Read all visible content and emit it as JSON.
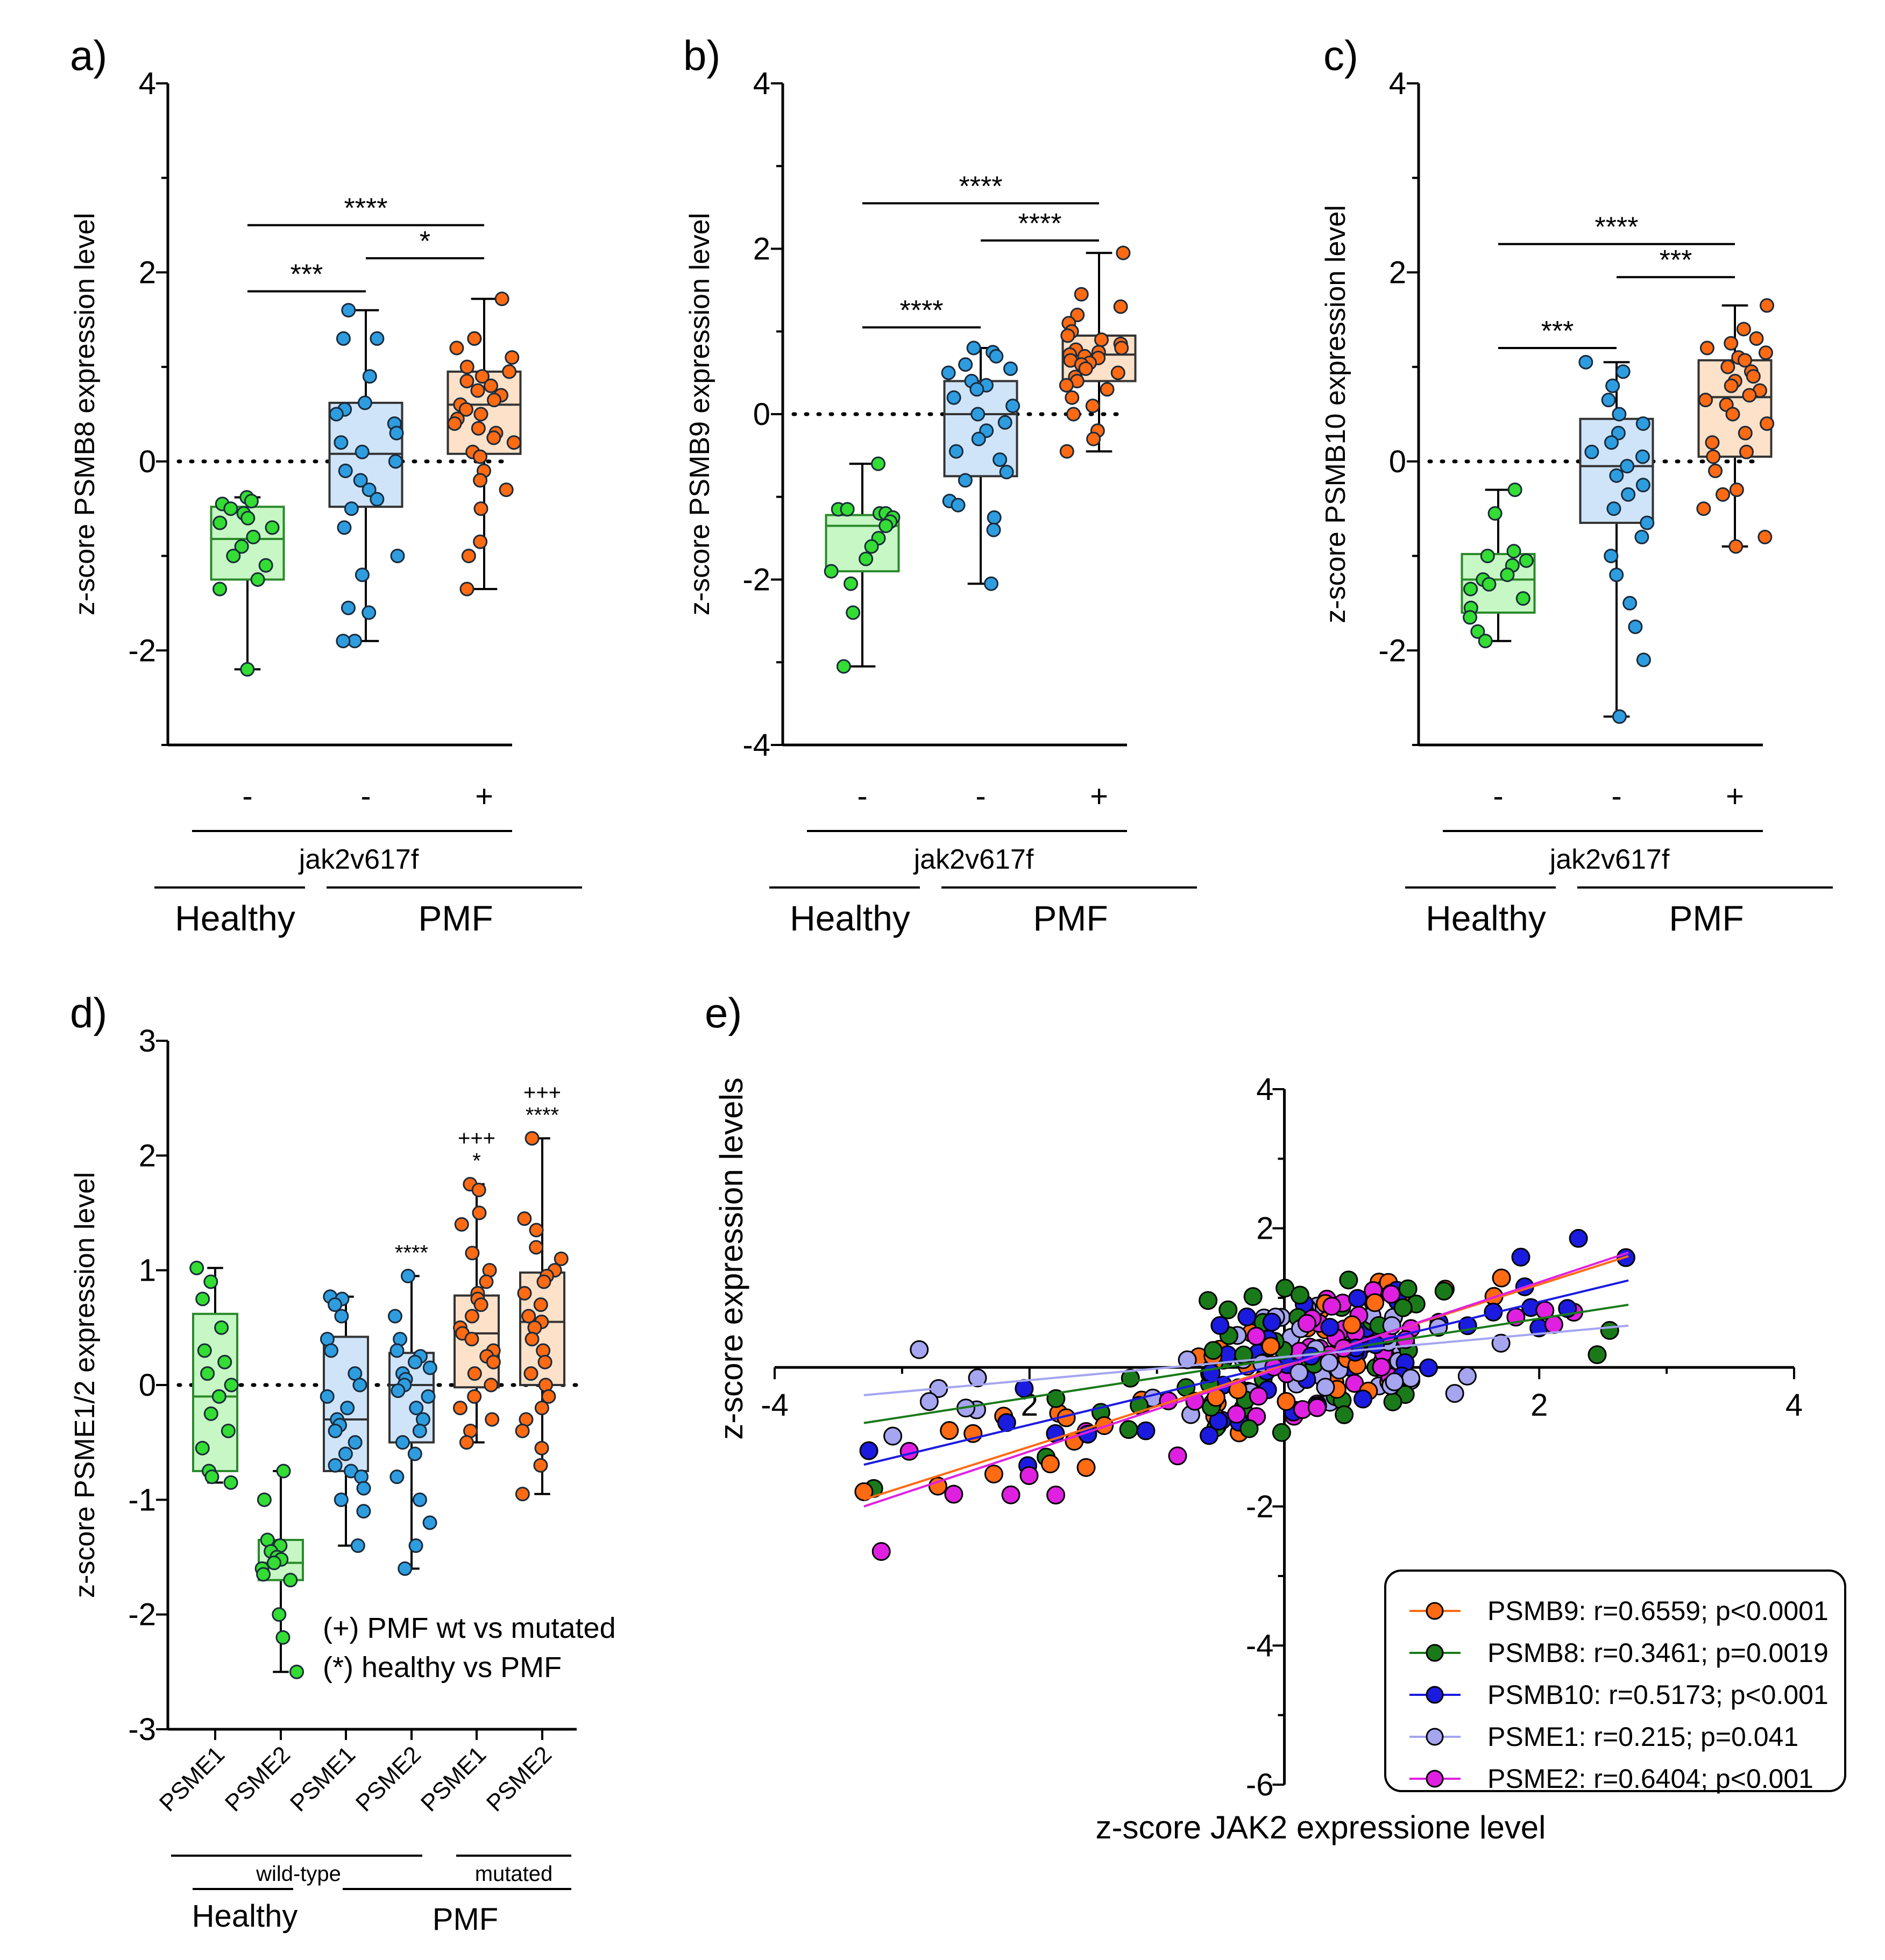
{
  "colors": {
    "healthy": "#33dd33",
    "pmf_wt": "#2e9de0",
    "pmf_mut": "#ff6a13",
    "healthy_box": "#c7f7c4",
    "wt_box": "#cfe4f8",
    "mut_box": "#fde1c8"
  },
  "chart_data": [
    {
      "panel": "a)",
      "type": "box",
      "ylabel": "z-score PSMB8 expression level",
      "yticks": [
        "4",
        "2",
        "0",
        "-2"
      ],
      "ylim": [
        -3,
        4
      ],
      "groups": [
        {
          "sign": "-",
          "color": "healthy",
          "stats": {
            "min": -2.2,
            "q1": -1.25,
            "med": -0.82,
            "q3": -0.48,
            "max": -0.38
          },
          "points": [
            -0.38,
            -0.42,
            -0.45,
            -0.5,
            -0.55,
            -0.6,
            -0.65,
            -0.7,
            -0.8,
            -0.9,
            -1.0,
            -1.1,
            -1.25,
            -1.35,
            -2.2
          ]
        },
        {
          "sign": "-",
          "color": "pmf_wt",
          "stats": {
            "min": -1.9,
            "q1": -0.48,
            "med": 0.08,
            "q3": 0.62,
            "max": 1.6
          },
          "points": [
            1.6,
            1.3,
            1.3,
            0.9,
            0.62,
            0.55,
            0.5,
            0.4,
            0.3,
            0.2,
            0.1,
            0.0,
            -0.1,
            -0.2,
            -0.3,
            -0.4,
            -0.5,
            -0.7,
            -1.0,
            -1.2,
            -1.55,
            -1.6,
            -1.9,
            -1.9
          ]
        },
        {
          "sign": "+",
          "color": "pmf_mut",
          "stats": {
            "min": -1.35,
            "q1": 0.08,
            "med": 0.6,
            "q3": 0.95,
            "max": 1.72
          },
          "points": [
            1.72,
            1.3,
            1.3,
            1.2,
            1.1,
            1.0,
            0.95,
            0.9,
            0.85,
            0.8,
            0.75,
            0.7,
            0.65,
            0.6,
            0.55,
            0.5,
            0.45,
            0.4,
            0.35,
            0.3,
            0.25,
            0.2,
            0.1,
            0.05,
            -0.1,
            -0.2,
            -0.3,
            -0.5,
            -0.85,
            -1.0,
            -1.35
          ]
        }
      ],
      "significance": [
        {
          "label": "****",
          "from": 0,
          "to": 2,
          "y": 2.5
        },
        {
          "label": "***",
          "from": 0,
          "to": 1,
          "y": 1.8
        },
        {
          "label": "*",
          "from": 1,
          "to": 2,
          "y": 2.15
        }
      ],
      "mutation_label": "jak2v617f",
      "group_labels": [
        "Healthy",
        "PMF"
      ]
    },
    {
      "panel": "b)",
      "type": "box",
      "ylabel": "z-score PSMB9 expression level",
      "yticks": [
        "4",
        "2",
        "0",
        "-2",
        "-4"
      ],
      "ylim": [
        -4,
        4
      ],
      "groups": [
        {
          "sign": "-",
          "color": "healthy",
          "stats": {
            "min": -3.05,
            "q1": -1.9,
            "med": -1.35,
            "q3": -1.22,
            "max": -0.6
          },
          "points": [
            -0.6,
            -1.15,
            -1.15,
            -1.2,
            -1.2,
            -1.25,
            -1.3,
            -1.35,
            -1.5,
            -1.6,
            -1.75,
            -1.9,
            -2.05,
            -2.4,
            -3.05
          ]
        },
        {
          "sign": "-",
          "color": "pmf_wt",
          "stats": {
            "min": -2.05,
            "q1": -0.75,
            "med": 0.0,
            "q3": 0.4,
            "max": 0.8
          },
          "points": [
            0.8,
            0.75,
            0.7,
            0.6,
            0.55,
            0.5,
            0.4,
            0.35,
            0.3,
            0.2,
            0.1,
            0.0,
            -0.1,
            -0.2,
            -0.3,
            -0.45,
            -0.55,
            -0.7,
            -0.8,
            -1.05,
            -1.1,
            -1.25,
            -1.4,
            -2.05
          ]
        },
        {
          "sign": "+",
          "color": "pmf_mut",
          "stats": {
            "min": -0.45,
            "q1": 0.4,
            "med": 0.72,
            "q3": 0.95,
            "max": 1.95
          },
          "points": [
            1.95,
            1.45,
            1.3,
            1.2,
            1.1,
            1.0,
            0.95,
            0.9,
            0.85,
            0.8,
            0.78,
            0.75,
            0.72,
            0.7,
            0.68,
            0.65,
            0.62,
            0.6,
            0.55,
            0.5,
            0.45,
            0.4,
            0.35,
            0.3,
            0.2,
            0.1,
            0.0,
            -0.2,
            -0.3,
            -0.45
          ]
        }
      ],
      "significance": [
        {
          "label": "****",
          "from": 0,
          "to": 2,
          "y": 2.55
        },
        {
          "label": "****",
          "from": 0,
          "to": 1,
          "y": 1.05
        },
        {
          "label": "****",
          "from": 1,
          "to": 2,
          "y": 2.1
        }
      ],
      "mutation_label": "jak2v617f",
      "group_labels": [
        "Healthy",
        "PMF"
      ]
    },
    {
      "panel": "c)",
      "type": "box",
      "ylabel": "z-score PSMB10 expression level",
      "yticks": [
        "4",
        "2",
        "0",
        "-2"
      ],
      "ylim": [
        -3,
        4
      ],
      "groups": [
        {
          "sign": "-",
          "color": "healthy",
          "stats": {
            "min": -1.9,
            "q1": -1.6,
            "med": -1.25,
            "q3": -0.98,
            "max": -0.3
          },
          "points": [
            -0.3,
            -0.55,
            -0.95,
            -1.0,
            -1.05,
            -1.1,
            -1.2,
            -1.25,
            -1.3,
            -1.35,
            -1.45,
            -1.55,
            -1.65,
            -1.8,
            -1.9
          ]
        },
        {
          "sign": "-",
          "color": "pmf_wt",
          "stats": {
            "min": -2.7,
            "q1": -0.65,
            "med": -0.05,
            "q3": 0.45,
            "max": 1.05
          },
          "points": [
            1.05,
            0.95,
            0.8,
            0.65,
            0.5,
            0.4,
            0.3,
            0.2,
            0.1,
            0.05,
            -0.05,
            -0.15,
            -0.25,
            -0.35,
            -0.5,
            -0.65,
            -0.8,
            -1.0,
            -1.2,
            -1.5,
            -1.75,
            -2.1,
            -2.7
          ]
        },
        {
          "sign": "+",
          "color": "pmf_mut",
          "stats": {
            "min": -0.9,
            "q1": 0.05,
            "med": 0.68,
            "q3": 1.07,
            "max": 1.65
          },
          "points": [
            1.65,
            1.4,
            1.3,
            1.25,
            1.2,
            1.15,
            1.1,
            1.07,
            1.0,
            0.95,
            0.9,
            0.85,
            0.8,
            0.75,
            0.7,
            0.65,
            0.6,
            0.5,
            0.4,
            0.3,
            0.2,
            0.1,
            0.05,
            -0.1,
            -0.3,
            -0.35,
            -0.5,
            -0.8,
            -0.9
          ]
        }
      ],
      "significance": [
        {
          "label": "****",
          "from": 0,
          "to": 2,
          "y": 2.3
        },
        {
          "label": "***",
          "from": 0,
          "to": 1,
          "y": 1.2
        },
        {
          "label": "***",
          "from": 1,
          "to": 2,
          "y": 1.95
        }
      ],
      "mutation_label": "jak2v617f",
      "group_labels": [
        "Healthy",
        "PMF"
      ]
    },
    {
      "panel": "d)",
      "type": "box",
      "ylabel": "z-score PSME1/2 expression level",
      "yticks": [
        "3",
        "2",
        "1",
        "0",
        "-1",
        "-2",
        "-3"
      ],
      "ylim": [
        -3,
        3
      ],
      "categories": [
        "PSME1",
        "PSME2",
        "PSME1",
        "PSME2",
        "PSME1",
        "PSME2"
      ],
      "groups": [
        {
          "color": "healthy",
          "stats": {
            "min": -0.85,
            "q1": -0.75,
            "med": -0.1,
            "q3": 0.62,
            "max": 1.02
          },
          "points": [
            1.02,
            0.9,
            0.75,
            0.5,
            0.3,
            0.2,
            0.1,
            0.0,
            -0.1,
            -0.25,
            -0.4,
            -0.55,
            -0.75,
            -0.8,
            -0.85
          ]
        },
        {
          "color": "healthy",
          "stats": {
            "min": -2.5,
            "q1": -1.7,
            "med": -1.55,
            "q3": -1.35,
            "max": -0.75
          },
          "points": [
            -0.75,
            -1.0,
            -1.35,
            -1.4,
            -1.45,
            -1.5,
            -1.52,
            -1.55,
            -1.6,
            -1.65,
            -1.7,
            -2.0,
            -2.2,
            -2.5
          ]
        },
        {
          "color": "pmf_wt",
          "stats": {
            "min": -1.4,
            "q1": -0.75,
            "med": -0.3,
            "q3": 0.42,
            "max": 0.77
          },
          "points": [
            0.77,
            0.75,
            0.7,
            0.6,
            0.4,
            0.3,
            0.1,
            0.0,
            -0.1,
            -0.2,
            -0.3,
            -0.35,
            -0.4,
            -0.5,
            -0.6,
            -0.7,
            -0.75,
            -0.8,
            -0.9,
            -1.0,
            -1.1,
            -1.4
          ]
        },
        {
          "color": "pmf_wt",
          "stats": {
            "min": -1.6,
            "q1": -0.5,
            "med": 0.0,
            "q3": 0.28,
            "max": 0.95
          },
          "points": [
            0.95,
            0.6,
            0.4,
            0.3,
            0.25,
            0.2,
            0.15,
            0.1,
            0.05,
            0.0,
            -0.05,
            -0.1,
            -0.2,
            -0.3,
            -0.4,
            -0.5,
            -0.6,
            -0.8,
            -1.0,
            -1.2,
            -1.4,
            -1.6
          ]
        },
        {
          "color": "pmf_mut",
          "stats": {
            "min": -0.5,
            "q1": -0.02,
            "med": 0.45,
            "q3": 0.78,
            "max": 1.75
          },
          "points": [
            1.75,
            1.7,
            1.5,
            1.4,
            1.15,
            1.0,
            0.9,
            0.8,
            0.75,
            0.7,
            0.6,
            0.5,
            0.45,
            0.4,
            0.3,
            0.25,
            0.2,
            0.1,
            0.0,
            -0.1,
            -0.2,
            -0.3,
            -0.4,
            -0.5
          ]
        },
        {
          "color": "pmf_mut",
          "stats": {
            "min": -0.95,
            "q1": 0.0,
            "med": 0.55,
            "q3": 0.98,
            "max": 2.15
          },
          "points": [
            2.15,
            1.45,
            1.35,
            1.2,
            1.1,
            1.0,
            0.95,
            0.9,
            0.8,
            0.7,
            0.6,
            0.55,
            0.5,
            0.4,
            0.3,
            0.2,
            0.1,
            0.0,
            -0.1,
            -0.2,
            -0.3,
            -0.4,
            -0.55,
            -0.7,
            -0.95
          ]
        }
      ],
      "annotations": [
        {
          "group": 3,
          "lines": [
            "****"
          ]
        },
        {
          "group": 4,
          "lines": [
            "+++",
            "*"
          ]
        },
        {
          "group": 5,
          "lines": [
            "+++",
            "****"
          ]
        }
      ],
      "notes": [
        "(+) PMF wt vs mutated",
        "(*) healthy vs PMF"
      ],
      "sub_labels": [
        "wild-type",
        "mutated"
      ],
      "group_labels": [
        "Healthy",
        "PMF"
      ]
    },
    {
      "panel": "e)",
      "type": "scatter",
      "xlabel": "z-score JAK2 expressione level",
      "ylabel": "z-score expression levels",
      "xlim": [
        -4,
        4
      ],
      "ylim": [
        -6,
        4
      ],
      "xticks": [
        "-4",
        "2",
        "2",
        "4"
      ],
      "yticks": [
        "4",
        "2",
        "-2",
        "-4",
        "-6"
      ],
      "series": [
        {
          "name": "PSMB9",
          "label": "PSMB9: r=0.6559; p<0.0001",
          "color": "#ff6a13",
          "fit": [
            -3.3,
            -1.9,
            2.7,
            1.6
          ]
        },
        {
          "name": "PSMB8",
          "label": "PSMB8: r=0.3461; p=0.0019",
          "color": "#1a7a1a",
          "fit": [
            -3.3,
            -0.8,
            2.7,
            0.9
          ]
        },
        {
          "name": "PSMB10",
          "label": "PSMB10: r=0.5173; p<0.001",
          "color": "#1b1be0",
          "fit": [
            -3.3,
            -1.4,
            2.7,
            1.25
          ]
        },
        {
          "name": "PSME1",
          "label": "PSME1: r=0.215; p=0.041",
          "color": "#a5a5f0",
          "fit": [
            -3.3,
            -0.4,
            2.7,
            0.6
          ]
        },
        {
          "name": "PSME2",
          "label": "PSME2: r=0.6404; p<0.001",
          "color": "#e020e0",
          "fit": [
            -3.3,
            -2.0,
            2.7,
            1.65
          ]
        }
      ]
    }
  ]
}
